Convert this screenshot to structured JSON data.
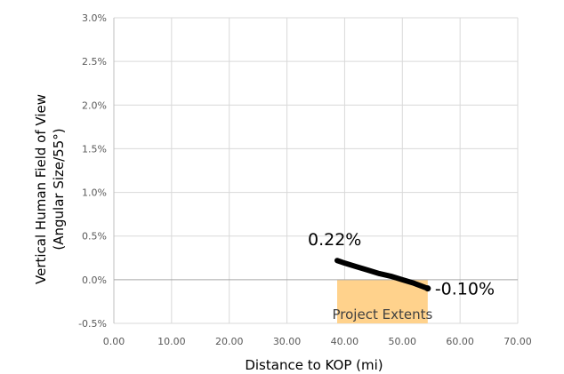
{
  "chart_data": {
    "type": "line",
    "title": "",
    "xlabel": "Distance to KOP (mi)",
    "ylabel": "Vertical Human Field of View",
    "ylabel_sub": "(Angular Size/55°)",
    "xlim": [
      0,
      70
    ],
    "ylim": [
      -0.5,
      3.0
    ],
    "x_ticks": [
      0,
      10,
      20,
      30,
      40,
      50,
      60,
      70
    ],
    "x_tick_labels": [
      "0.00",
      "10.00",
      "20.00",
      "30.00",
      "40.00",
      "50.00",
      "60.00",
      "70.00"
    ],
    "y_ticks": [
      -0.5,
      0,
      0.5,
      1.0,
      1.5,
      2.0,
      2.5,
      3.0
    ],
    "y_tick_labels": [
      "-0.5%",
      "0.0%",
      "0.5%",
      "1.0%",
      "1.5%",
      "2.0%",
      "2.5%",
      "3.0%"
    ],
    "grid": true,
    "series": [
      {
        "x": [
          38.7,
          40,
          42,
          44,
          46,
          48,
          50,
          52,
          54.4
        ],
        "y": [
          0.22,
          0.19,
          0.15,
          0.11,
          0.07,
          0.04,
          0.0,
          -0.04,
          -0.1
        ],
        "color": "#000000"
      }
    ],
    "region": {
      "label": "Project Extents",
      "x_start": 38.7,
      "x_end": 54.4,
      "color": "#FFD28C"
    },
    "annotations": [
      {
        "text": "0.22%",
        "x": 38.7,
        "y": 0.22,
        "anchor": "start-label"
      },
      {
        "text": "-0.10%",
        "x": 54.4,
        "y": -0.1,
        "anchor": "end-label"
      }
    ]
  }
}
